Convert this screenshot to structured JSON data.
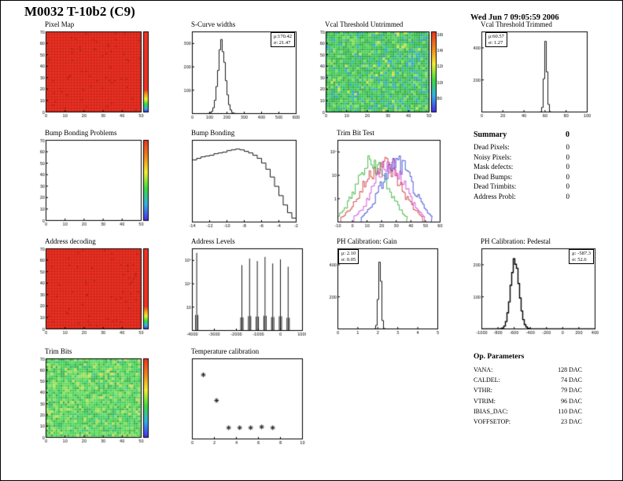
{
  "page": {
    "title": "M0032 T-10b2 (C9)",
    "date": "Wed Jun  7 09:05:59 2006"
  },
  "summary": {
    "heading": "Summary",
    "total": "0",
    "rows": [
      {
        "label": "Dead Pixels:",
        "value": "0"
      },
      {
        "label": "Noisy Pixels:",
        "value": "0"
      },
      {
        "label": "Mask defects:",
        "value": "0"
      },
      {
        "label": "Dead Bumps:",
        "value": "0"
      },
      {
        "label": "Dead Trimbits:",
        "value": "0"
      },
      {
        "label": "Address Probl:",
        "value": "0"
      }
    ]
  },
  "op_parameters": {
    "heading": "Op. Parameters",
    "rows": [
      {
        "label": "VANA:",
        "value": "128 DAC"
      },
      {
        "label": "CALDEL:",
        "value": "74 DAC"
      },
      {
        "label": "VTHR:",
        "value": "79 DAC"
      },
      {
        "label": "VTRIM:",
        "value": "96 DAC"
      },
      {
        "label": "IBIAS_DAC:",
        "value": "110 DAC"
      },
      {
        "label": "VOFFSETOP:",
        "value": "23 DAC"
      }
    ]
  },
  "chart_data": [
    {
      "id": "pixel-map",
      "title": "Pixel Map",
      "type": "heatmap",
      "style": "red-grid",
      "colorbar": true,
      "x_ticks": [
        "0",
        "10",
        "20",
        "30",
        "40",
        "50"
      ],
      "y_ticks": [
        "0",
        "10",
        "20",
        "30",
        "40",
        "50",
        "60",
        "70"
      ]
    },
    {
      "id": "scurve-widths",
      "title": "S-Curve widths",
      "type": "hist",
      "dist": {
        "mu": 170.42,
        "sigma": 21.47,
        "xmin": 0,
        "xmax": 600
      },
      "x_ticks": [
        "0",
        "100",
        "200",
        "300",
        "400",
        "500",
        "600"
      ],
      "y_ticks": [
        "100",
        "200",
        "300"
      ],
      "stats": {
        "mu_label": "μ:170.42",
        "sigma_label": "σ: 21.47"
      },
      "stats_pos": "right"
    },
    {
      "id": "vcal-threshold-untrimmed",
      "title": "Vcal Threshold Untrimmed",
      "type": "heatmap",
      "style": "noise-green",
      "colorbar": true,
      "x_ticks": [
        "0",
        "10",
        "20",
        "30",
        "40",
        "50"
      ],
      "y_ticks": [
        "0",
        "10",
        "20",
        "30",
        "40",
        "50",
        "60",
        "70"
      ],
      "colorbar_ticks": [
        "160",
        "140",
        "120",
        "100",
        "80"
      ]
    },
    {
      "id": "vcal-threshold-trimmed",
      "title": "Vcal Threshold Trimmed",
      "type": "hist",
      "dist": {
        "mu": 60.57,
        "sigma": 1.27,
        "xmin": 0,
        "xmax": 100
      },
      "x_ticks": [
        "0",
        "20",
        "40",
        "60",
        "80",
        "100"
      ],
      "y_ticks": [
        "200",
        "400"
      ],
      "stats": {
        "mu_label": "μ:60.57",
        "sigma_label": "σ: 1.27"
      },
      "stats_pos": "left"
    },
    {
      "id": "bump-bonding-problems",
      "title": "Bump Bonding Problems",
      "type": "heatmap",
      "style": "empty",
      "colorbar": true,
      "x_ticks": [
        "0",
        "10",
        "20",
        "30",
        "40",
        "50"
      ],
      "y_ticks": [
        "0",
        "10",
        "20",
        "30",
        "40",
        "50",
        "60",
        "70"
      ]
    },
    {
      "id": "bump-bonding",
      "title": "Bump Bonding",
      "type": "steps",
      "xmin": -14,
      "xmax": -2,
      "x_ticks": [
        "-14",
        "-12",
        "-10",
        "-8",
        "-6",
        "-4",
        "-2"
      ],
      "values": [
        0.8,
        0.82,
        0.84,
        0.85,
        0.86,
        0.88,
        0.89,
        0.9,
        0.92,
        0.93,
        0.94,
        0.93,
        0.91,
        0.89,
        0.86,
        0.82,
        0.76,
        0.68,
        0.58,
        0.46,
        0.34,
        0.22,
        0.12,
        0.05
      ]
    },
    {
      "id": "trim-bit-test",
      "title": "Trim Bit Test",
      "type": "multi",
      "xmin": -10,
      "xmax": 60,
      "x_ticks": [
        "-10",
        "0",
        "10",
        "20",
        "30",
        "40",
        "50",
        "60"
      ],
      "y_ticks": [
        "1",
        "10",
        "10²"
      ],
      "series": [
        {
          "color": "#cc2222",
          "mu": 20,
          "sigma": 7
        },
        {
          "color": "#22aa22",
          "mu": 13,
          "sigma": 6
        },
        {
          "color": "#2233cc",
          "mu": 30,
          "sigma": 6
        },
        {
          "color": "#cc33cc",
          "mu": 25,
          "sigma": 6
        }
      ]
    },
    {
      "id": "address-decoding",
      "title": "Address decoding",
      "type": "heatmap",
      "style": "red-grid",
      "colorbar": true,
      "x_ticks": [
        "0",
        "10",
        "20",
        "30",
        "40",
        "50"
      ],
      "y_ticks": [
        "0",
        "10",
        "20",
        "30",
        "40",
        "50",
        "60",
        "70"
      ]
    },
    {
      "id": "address-levels",
      "title": "Address Levels",
      "type": "spikes",
      "xmin": -4000,
      "xmax": 1000,
      "x_ticks": [
        "-4000",
        "-3000",
        "-2000",
        "-1000",
        "0",
        "1000"
      ],
      "y_ticks": [
        "10",
        "10²",
        "10³"
      ],
      "spikes": [
        {
          "x": -3800,
          "h": 0.95
        },
        {
          "x": -1750,
          "h": 0.8
        },
        {
          "x": -1400,
          "h": 0.88
        },
        {
          "x": -1050,
          "h": 0.85
        },
        {
          "x": -700,
          "h": 0.9
        },
        {
          "x": -350,
          "h": 0.82
        },
        {
          "x": 0,
          "h": 0.87
        },
        {
          "x": 350,
          "h": 0.78
        }
      ]
    },
    {
      "id": "ph-calibration-gain",
      "title": "PH Calibration: Gain",
      "type": "hist",
      "dist": {
        "mu": 2.1,
        "sigma": 0.05,
        "xmin": 0,
        "xmax": 5
      },
      "x_ticks": [
        "0",
        "1",
        "2",
        "3",
        "4",
        "5"
      ],
      "y_ticks": [
        "200",
        "400"
      ],
      "stats": {
        "mu_label": "μ: 2.10",
        "sigma_label": "σ: 0.05"
      },
      "stats_pos": "left"
    },
    {
      "id": "ph-calibration-pedestal",
      "title": "PH Calibration: Pedestal",
      "type": "hist",
      "thick": true,
      "dist": {
        "mu": -587.3,
        "sigma": 52.6,
        "xmin": -1000,
        "xmax": 400
      },
      "x_ticks": [
        "-1000",
        "-800",
        "-600",
        "-400",
        "-200",
        "0",
        "200",
        "400"
      ],
      "y_ticks": [
        "100",
        "200"
      ],
      "stats": {
        "mu_label": "μ: -587.3",
        "sigma_label": "σ: 52.6"
      },
      "stats_pos": "right"
    },
    {
      "id": "trim-bits",
      "title": "Trim Bits",
      "type": "heatmap",
      "style": "noise-trim",
      "colorbar": true,
      "x_ticks": [
        "0",
        "10",
        "20",
        "30",
        "40",
        "50"
      ],
      "y_ticks": [
        "0",
        "10",
        "20",
        "30",
        "40",
        "50",
        "60",
        "70"
      ]
    },
    {
      "id": "temperature-calibration",
      "title": "Temperature calibration",
      "type": "scatter",
      "xmin": 0,
      "xmax": 10,
      "ymin": 0,
      "ymax": 1,
      "x_ticks": [
        "0",
        "2",
        "4",
        "6",
        "8",
        "10"
      ],
      "points": [
        {
          "x": 1.0,
          "y": 0.8
        },
        {
          "x": 2.2,
          "y": 0.48
        },
        {
          "x": 3.3,
          "y": 0.14
        },
        {
          "x": 4.3,
          "y": 0.14
        },
        {
          "x": 5.3,
          "y": 0.14
        },
        {
          "x": 6.3,
          "y": 0.15
        },
        {
          "x": 7.3,
          "y": 0.14
        }
      ]
    }
  ]
}
